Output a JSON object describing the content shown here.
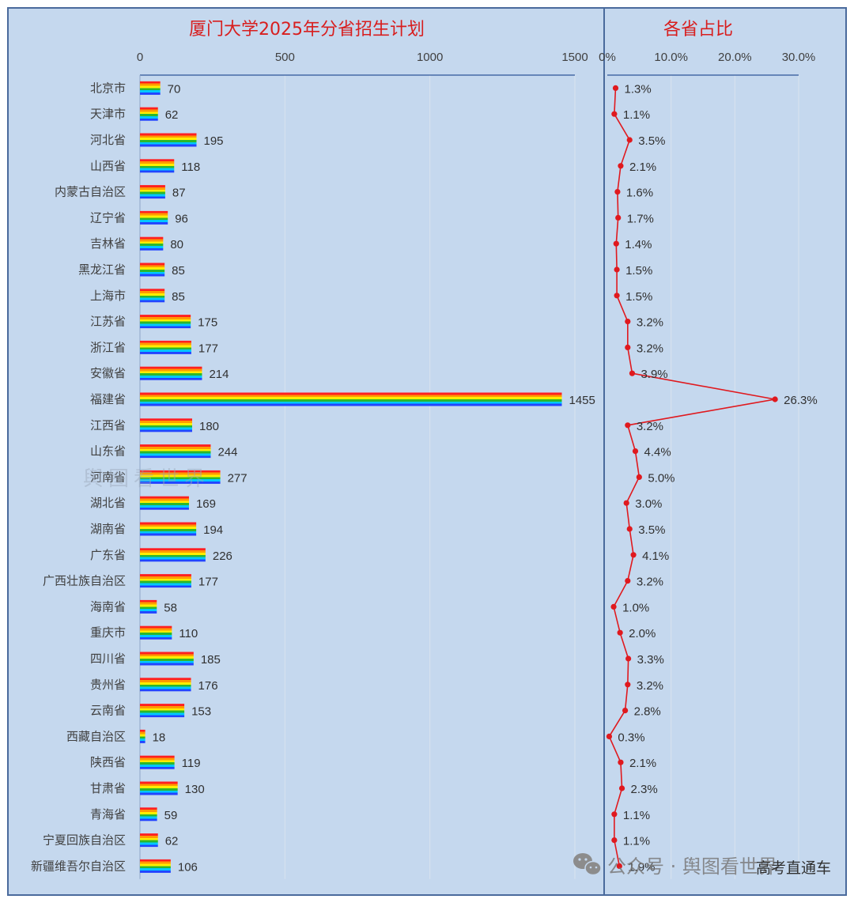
{
  "chart_data": [
    {
      "type": "bar",
      "title": "厦门大学2025年分省招生计划",
      "orientation": "horizontal",
      "xlim": [
        0,
        1500
      ],
      "xticks": [
        "0",
        "500",
        "1000",
        "1500"
      ],
      "grid": true,
      "categories": [
        "北京市",
        "天津市",
        "河北省",
        "山西省",
        "内蒙古自治区",
        "辽宁省",
        "吉林省",
        "黑龙江省",
        "上海市",
        "江苏省",
        "浙江省",
        "安徽省",
        "福建省",
        "江西省",
        "山东省",
        "河南省",
        "湖北省",
        "湖南省",
        "广东省",
        "广西壮族自治区",
        "海南省",
        "重庆市",
        "四川省",
        "贵州省",
        "云南省",
        "西藏自治区",
        "陕西省",
        "甘肃省",
        "青海省",
        "宁夏回族自治区",
        "新疆维吾尔自治区"
      ],
      "values": [
        70,
        62,
        195,
        118,
        87,
        96,
        80,
        85,
        85,
        175,
        177,
        214,
        1455,
        180,
        244,
        277,
        169,
        194,
        226,
        177,
        58,
        110,
        185,
        176,
        153,
        18,
        119,
        130,
        59,
        62,
        106
      ],
      "bar_colors": [
        "#ff2020",
        "#ff9a00",
        "#ffee00",
        "#2cb82c",
        "#00c8ff",
        "#2244ff"
      ]
    },
    {
      "type": "line",
      "title": "各省占比",
      "xlim": [
        0,
        30
      ],
      "xticks": [
        "0%",
        "10.0%",
        "20.0%",
        "30.0%"
      ],
      "grid": true,
      "values": [
        1.3,
        1.1,
        3.5,
        2.1,
        1.6,
        1.7,
        1.4,
        1.5,
        1.5,
        3.2,
        3.2,
        3.9,
        26.3,
        3.2,
        4.4,
        5.0,
        3.0,
        3.5,
        4.1,
        3.2,
        1.0,
        2.0,
        3.3,
        3.2,
        2.8,
        0.3,
        2.1,
        2.3,
        1.1,
        1.1,
        1.9
      ],
      "labels": [
        "1.3%",
        "1.1%",
        "3.5%",
        "2.1%",
        "1.6%",
        "1.7%",
        "1.4%",
        "1.5%",
        "1.5%",
        "3.2%",
        "3.2%",
        "3.9%",
        "26.3%",
        "3.2%",
        "4.4%",
        "5.0%",
        "3.0%",
        "3.5%",
        "4.1%",
        "3.2%",
        "1.0%",
        "2.0%",
        "3.3%",
        "3.2%",
        "2.8%",
        "0.3%",
        "2.1%",
        "2.3%",
        "1.1%",
        "1.1%",
        "1.9%"
      ],
      "line_color": "#e0191e"
    }
  ],
  "colors": {
    "background": "#c5d8ee",
    "frame": "#4a6a9c"
  },
  "watermark": {
    "center_text": "舆图看世界",
    "footer_text": "公众号 · 舆图看世界",
    "corner_text": "高考直通车"
  }
}
